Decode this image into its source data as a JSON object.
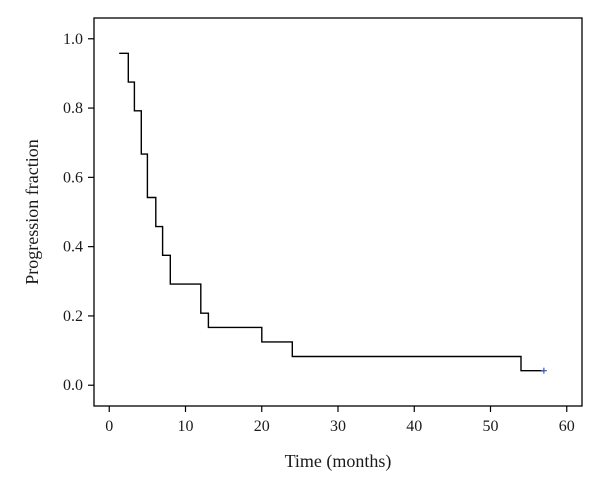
{
  "chart_data": {
    "type": "line",
    "title": "",
    "xlabel": "Time (months)",
    "ylabel": "Progression fraction",
    "xlim": [
      -2,
      62
    ],
    "ylim": [
      -0.06,
      1.06
    ],
    "xticks": [
      0,
      10,
      20,
      30,
      40,
      50,
      60
    ],
    "yticks": [
      0.0,
      0.2,
      0.4,
      0.6,
      0.8,
      1.0
    ],
    "xtick_labels": [
      "0",
      "10",
      "20",
      "30",
      "40",
      "50",
      "60"
    ],
    "ytick_labels": [
      "0.0",
      "0.2",
      "0.4",
      "0.6",
      "0.8",
      "1.0"
    ],
    "grid": false,
    "legend": "none",
    "series": [
      {
        "step": "post",
        "color": "#000000",
        "x": [
          1.3,
          2.5,
          3.3,
          4.2,
          5.0,
          6.1,
          7.0,
          8.0,
          12.0,
          13.0,
          20.0,
          24.0,
          54.0,
          57.0
        ],
        "y": [
          0.958,
          0.875,
          0.792,
          0.667,
          0.542,
          0.458,
          0.375,
          0.292,
          0.208,
          0.167,
          0.125,
          0.083,
          0.042,
          0.042
        ]
      }
    ],
    "censor_marks": [
      {
        "x": 57.0,
        "y": 0.042,
        "color": "#3a5bc7"
      }
    ]
  }
}
